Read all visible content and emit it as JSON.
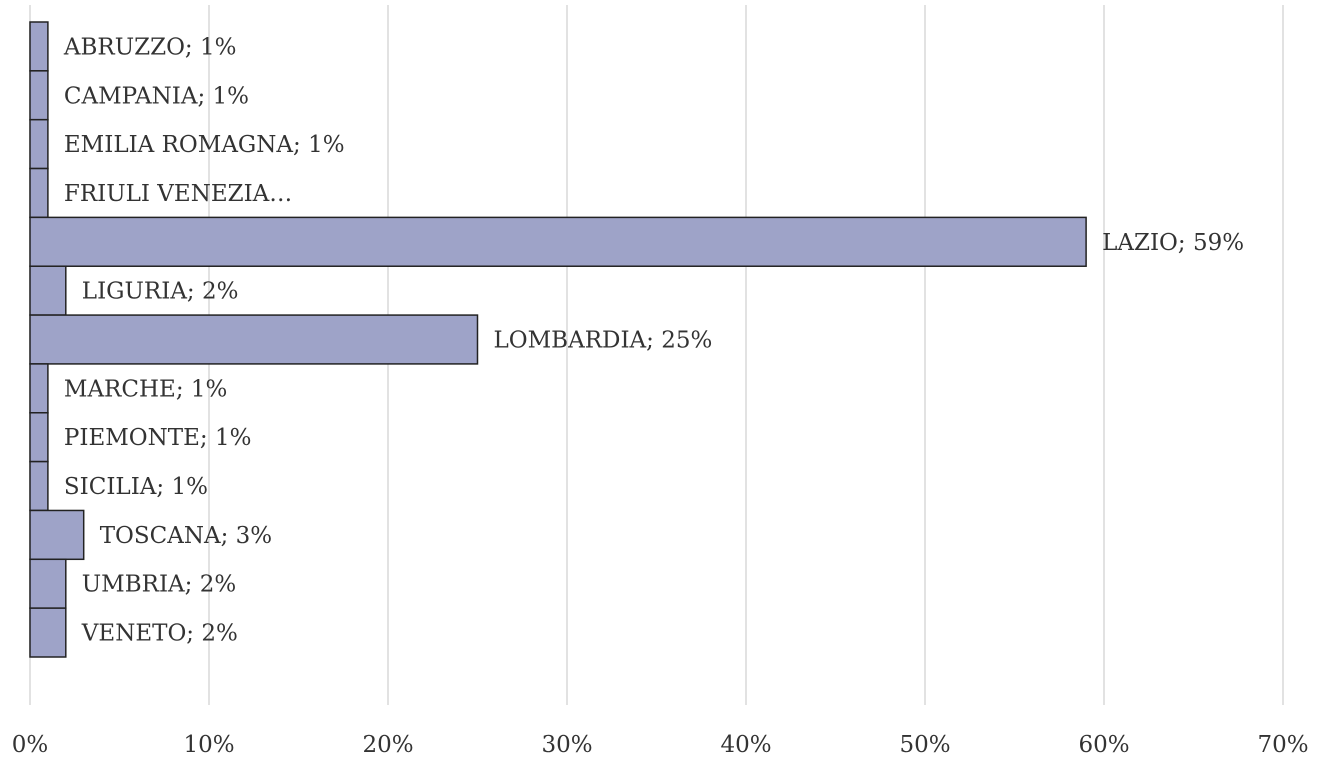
{
  "chart_data": {
    "type": "bar",
    "orientation": "horizontal",
    "values": [
      1,
      1,
      1,
      1,
      59,
      2,
      25,
      1,
      1,
      1,
      3,
      2,
      2
    ],
    "value_labels": [
      "ABRUZZO; 1%",
      "CAMPANIA; 1%",
      "EMILIA ROMAGNA; 1%",
      "FRIULI VENEZIA…",
      "LAZIO; 59%",
      "LIGURIA; 2%",
      "LOMBARDIA; 25%",
      "MARCHE; 1%",
      "PIEMONTE; 1%",
      "SICILIA; 1%",
      "TOSCANA; 3%",
      "UMBRIA; 2%",
      "VENETO; 2%"
    ],
    "color": "#9ea3c8",
    "xlim": [
      0,
      70
    ],
    "xticks": [
      {
        "value": 0,
        "label": "0%"
      },
      {
        "value": 10,
        "label": "10%"
      },
      {
        "value": 20,
        "label": "20%"
      },
      {
        "value": 30,
        "label": "30%"
      },
      {
        "value": 40,
        "label": "40%"
      },
      {
        "value": 50,
        "label": "50%"
      },
      {
        "value": 60,
        "label": "60%"
      },
      {
        "value": 70,
        "label": "70%"
      }
    ],
    "grid": true
  }
}
